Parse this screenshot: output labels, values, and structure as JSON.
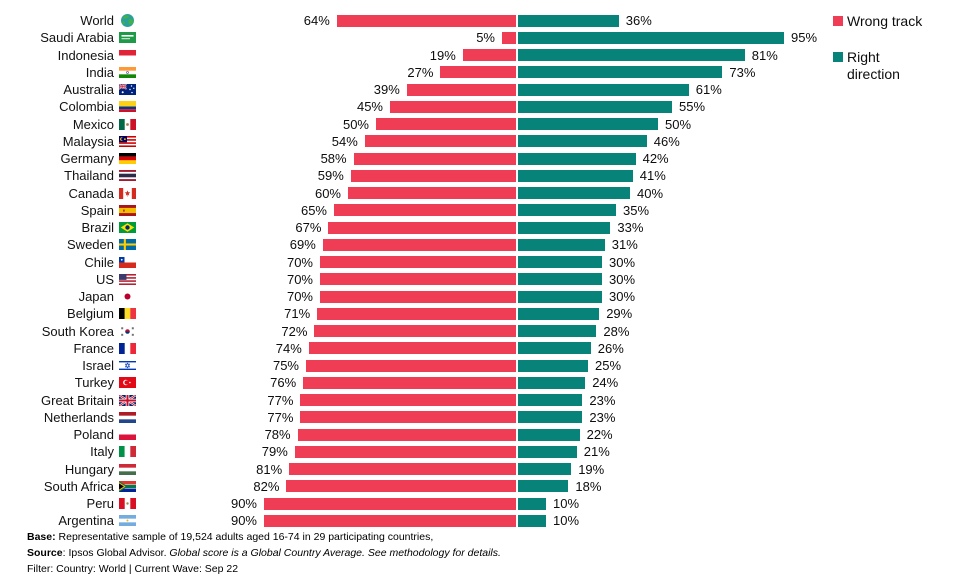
{
  "legend": {
    "wrong_label": "Wrong track",
    "right_label": "Right direction"
  },
  "colors": {
    "wrong_track": "#EE3D55",
    "right_direction": "#08837A"
  },
  "chart_data": {
    "type": "bar",
    "subtype": "diverging-horizontal-stacked",
    "unit": "%",
    "axis_range": [
      0,
      100
    ],
    "grid": false,
    "legend_position": "top-right",
    "value_label_format": "{v}%",
    "categories": [
      "World",
      "Saudi Arabia",
      "Indonesia",
      "India",
      "Australia",
      "Colombia",
      "Mexico",
      "Malaysia",
      "Germany",
      "Thailand",
      "Canada",
      "Spain",
      "Brazil",
      "Sweden",
      "Chile",
      "US",
      "Japan",
      "Belgium",
      "South Korea",
      "France",
      "Israel",
      "Turkey",
      "Great Britain",
      "Netherlands",
      "Poland",
      "Italy",
      "Hungary",
      "South Africa",
      "Peru",
      "Argentina"
    ],
    "flags": [
      "world",
      "saudi-arabia",
      "indonesia",
      "india",
      "australia",
      "colombia",
      "mexico",
      "malaysia",
      "germany",
      "thailand",
      "canada",
      "spain",
      "brazil",
      "sweden",
      "chile",
      "us",
      "japan",
      "belgium",
      "south-korea",
      "france",
      "israel",
      "turkey",
      "great-britain",
      "netherlands",
      "poland",
      "italy",
      "hungary",
      "south-africa",
      "peru",
      "argentina"
    ],
    "series": [
      {
        "name": "Wrong track",
        "color": "#EE3D55",
        "values": [
          64,
          5,
          19,
          27,
          39,
          45,
          50,
          54,
          58,
          59,
          60,
          65,
          67,
          69,
          70,
          70,
          70,
          71,
          72,
          74,
          75,
          76,
          77,
          77,
          78,
          79,
          81,
          82,
          90,
          90
        ]
      },
      {
        "name": "Right direction",
        "color": "#08837A",
        "values": [
          36,
          95,
          81,
          73,
          61,
          55,
          50,
          46,
          42,
          41,
          40,
          35,
          33,
          31,
          30,
          30,
          30,
          29,
          28,
          26,
          25,
          24,
          23,
          23,
          22,
          21,
          19,
          18,
          10,
          10
        ]
      }
    ]
  },
  "footer": {
    "base_label": "Base:",
    "base_text": " Representative sample of 19,524 adults aged 16-74 in 29 participating countries,",
    "source_label": "Source",
    "source_text": ": Ipsos Global Advisor. ",
    "source_italic": "Global score is a Global Country Average. See methodology for details.",
    "filter_text": "Filter: Country: World | Current Wave: Sep 22"
  }
}
